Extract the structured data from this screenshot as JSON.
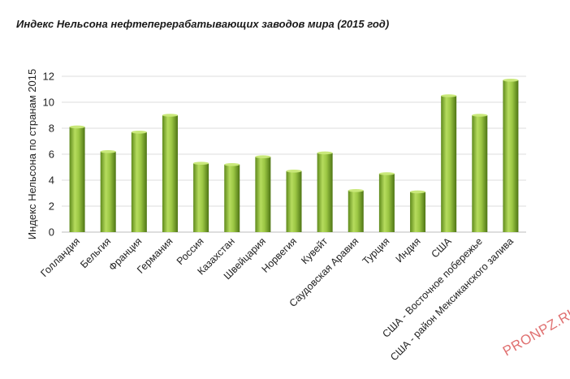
{
  "chart_data": {
    "type": "bar",
    "title": "Индекс Нельсона нефтеперерабатывающих заводов мира (2015 год)",
    "xlabel": "",
    "ylabel": "Индекс Нельсона по странам 2015",
    "ylim": [
      0,
      12
    ],
    "yticks": [
      0,
      2,
      4,
      6,
      8,
      10,
      12
    ],
    "grid": true,
    "legend": "none",
    "categories": [
      "Голландия",
      "Бельгия",
      "Франция",
      "Германия",
      "Россия",
      "Казахстан",
      "Швейцария",
      "Норвегия",
      "Кувейт",
      "Саудовская Аравия",
      "Турция",
      "Индия",
      "США",
      "США - Восточное побережье",
      "США - район Мексиканского залива"
    ],
    "values": [
      8.1,
      6.2,
      7.7,
      9.0,
      5.3,
      5.2,
      5.8,
      4.7,
      6.1,
      3.2,
      4.5,
      3.1,
      10.5,
      9.0,
      11.7
    ],
    "bar_color": "#8db83a"
  },
  "watermark": "PRONPZ.RU"
}
